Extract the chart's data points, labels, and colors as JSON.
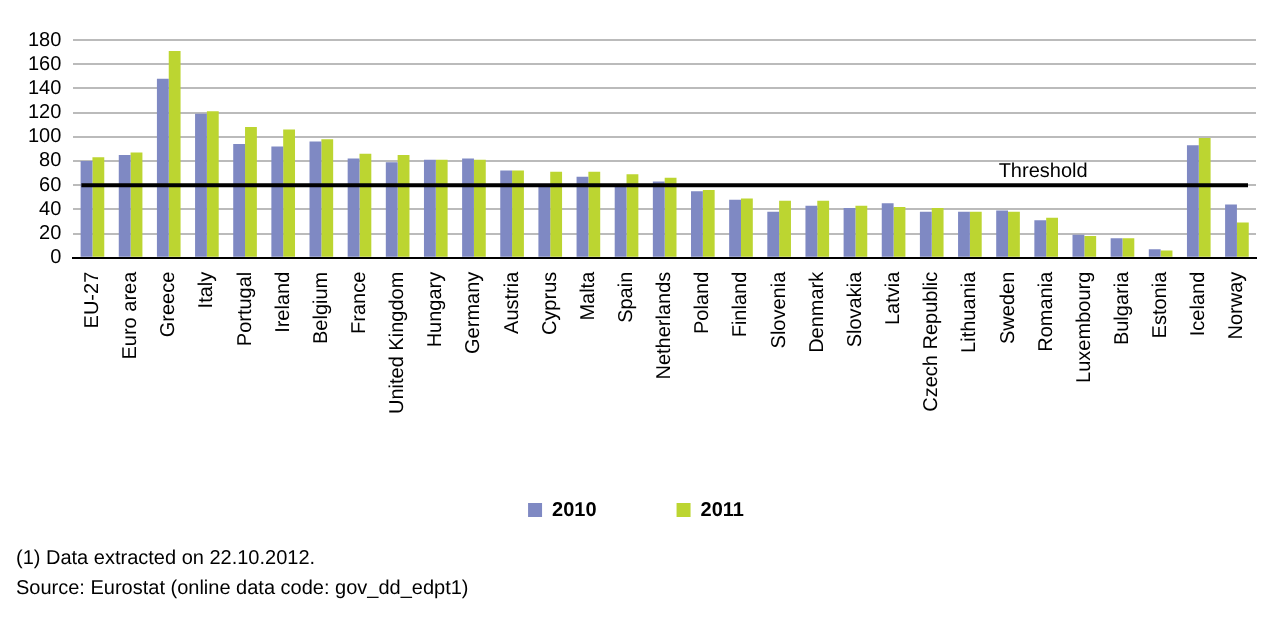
{
  "chart_data": {
    "type": "bar",
    "categories": [
      "EU-27",
      "Euro area",
      "Greece",
      "Italy",
      "Portugal",
      "Ireland",
      "Belgium",
      "France",
      "United Kingdom",
      "Hungary",
      "Germany",
      "Austria",
      "Cyprus",
      "Malta",
      "Spain",
      "Netherlands",
      "Poland",
      "Finland",
      "Slovenia",
      "Denmark",
      "Slovakia",
      "Latvia",
      "Czech Republic",
      "Lithuania",
      "Sweden",
      "Romania",
      "Luxembourg",
      "Bulgaria",
      "Estonia",
      "Iceland",
      "Norway"
    ],
    "series": [
      {
        "name": "2010",
        "color": "#7f89c3",
        "values": [
          80,
          85,
          148,
          119,
          94,
          92,
          96,
          82,
          79,
          81,
          82,
          72,
          61,
          67,
          61,
          63,
          55,
          48,
          38,
          43,
          41,
          45,
          38,
          38,
          39,
          31,
          19,
          16,
          7,
          93,
          44
        ]
      },
      {
        "name": "2011",
        "color": "#bcd531",
        "values": [
          83,
          87,
          171,
          121,
          108,
          106,
          98,
          86,
          85,
          81,
          81,
          72,
          71,
          71,
          69,
          66,
          56,
          49,
          47,
          47,
          43,
          42,
          41,
          38,
          38,
          33,
          18,
          16,
          6,
          99,
          29
        ]
      }
    ],
    "ylim": [
      0,
      180
    ],
    "yticks": [
      0,
      20,
      40,
      60,
      80,
      100,
      120,
      140,
      160,
      180
    ],
    "grid": "y",
    "legend": "bottom",
    "ref_lines": [
      {
        "axis": "y",
        "value": 60,
        "label": "Threshold",
        "color": "#000000"
      }
    ],
    "annotations": [
      "(1) Data extracted on 22.10.2012.",
      "Source: Eurostat (online data code: gov_dd_edpt1)"
    ]
  }
}
